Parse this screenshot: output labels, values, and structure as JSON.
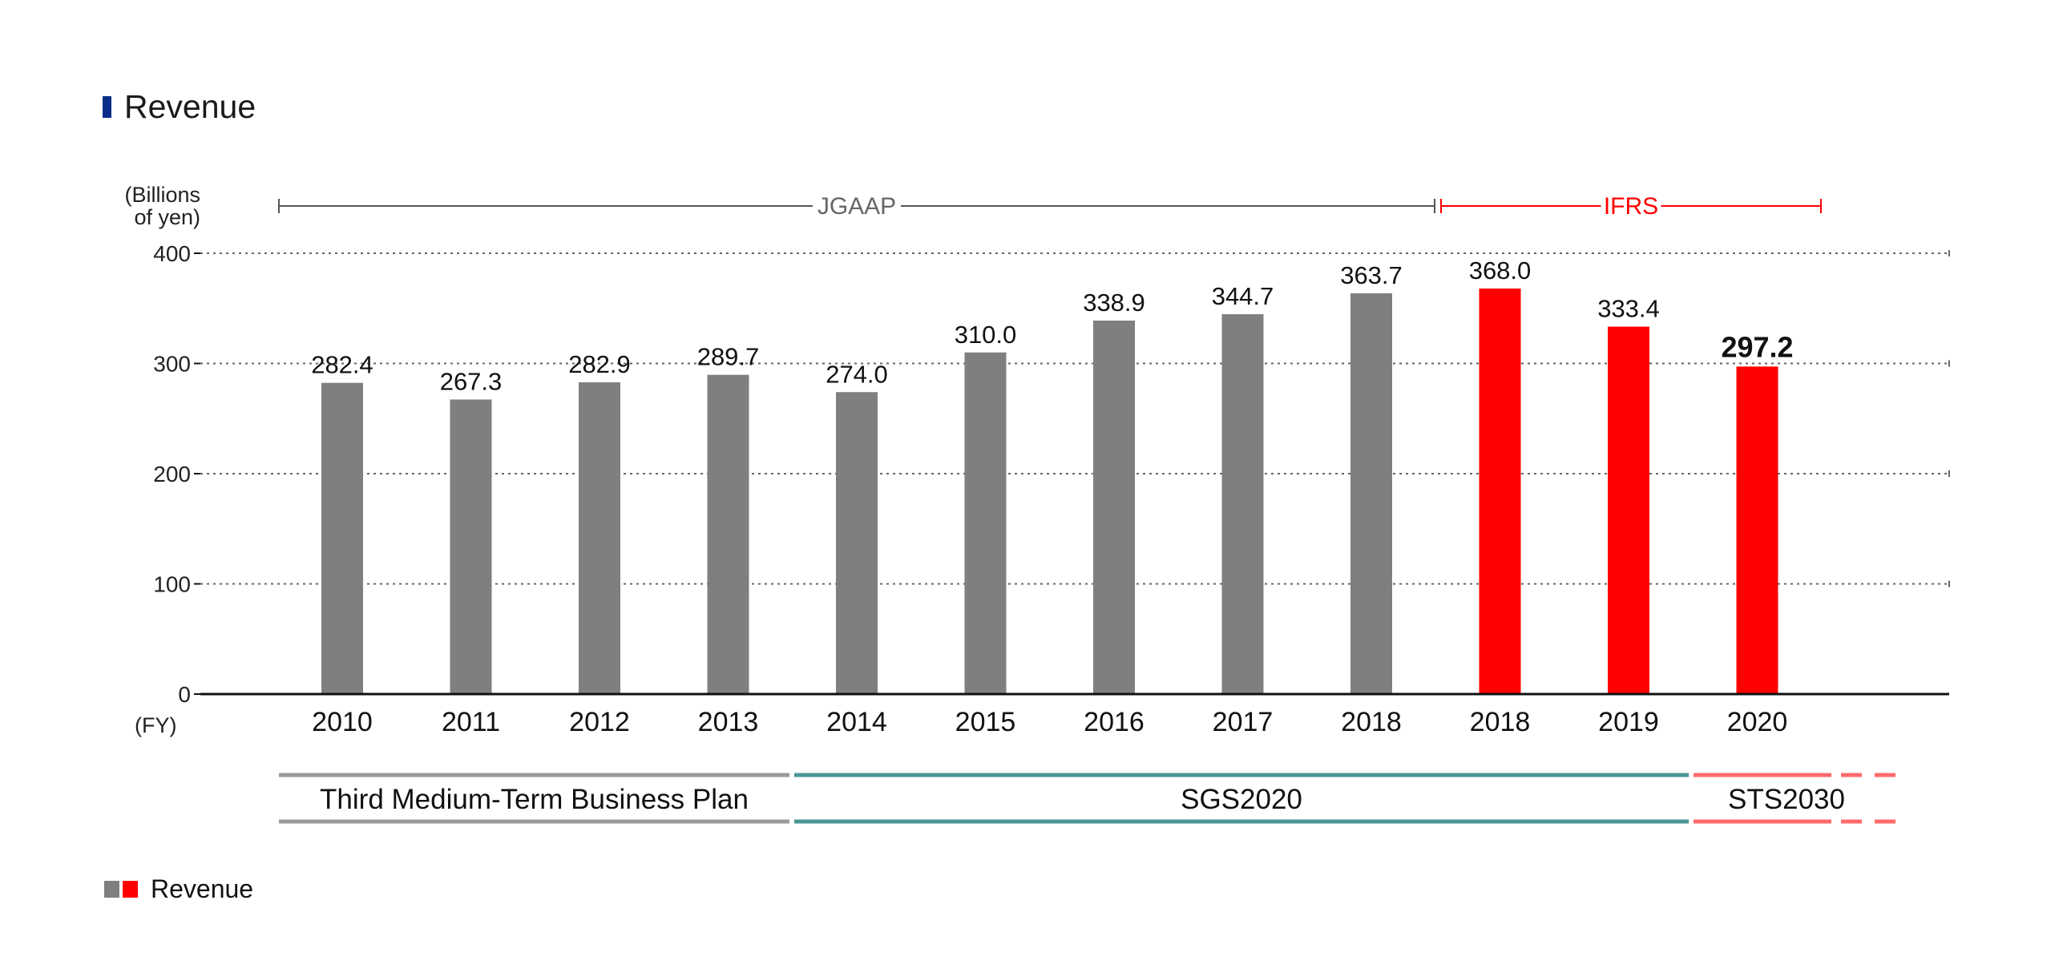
{
  "colors": {
    "jgaap_bar": "#7f7f7f",
    "ifrs_bar": "#ff0000",
    "title_marker": "#0a2e8a",
    "jgaap_line": "#555555",
    "ifrs_line": "#ff0000",
    "plan_third": "#9a9a9a",
    "plan_sgs": "#4a9696",
    "plan_sts": "#ff6b6b",
    "grid": "#666666",
    "axis": "#111111"
  },
  "chart_data": {
    "type": "bar",
    "title": "Revenue",
    "unit_label": [
      "(Billions",
      "of yen)"
    ],
    "xlabel": "(FY)",
    "ylim": [
      0,
      400
    ],
    "yticks": [
      0,
      100,
      200,
      300,
      400
    ],
    "grid": "horizontal dotted",
    "categories": [
      "2010",
      "2011",
      "2012",
      "2013",
      "2014",
      "2015",
      "2016",
      "2017",
      "2018",
      "2018",
      "2019",
      "2020"
    ],
    "values": [
      282.4,
      267.3,
      282.9,
      289.7,
      274.0,
      310.0,
      338.9,
      344.7,
      363.7,
      368.0,
      333.4,
      297.2
    ],
    "value_labels": [
      "282.4",
      "267.3",
      "282.9",
      "289.7",
      "274.0",
      "310.0",
      "338.9",
      "344.7",
      "363.7",
      "368.0",
      "333.4",
      "297.2"
    ],
    "standard": [
      "JGAAP",
      "JGAAP",
      "JGAAP",
      "JGAAP",
      "JGAAP",
      "JGAAP",
      "JGAAP",
      "JGAAP",
      "JGAAP",
      "IFRS",
      "IFRS",
      "IFRS"
    ],
    "accounting_spans": [
      {
        "label": "JGAAP",
        "from": 0,
        "to": 8
      },
      {
        "label": "IFRS",
        "from": 9,
        "to": 11
      }
    ],
    "plans": [
      {
        "label": "Third Medium-Term Business Plan",
        "from": 0,
        "to": 3,
        "continues": false
      },
      {
        "label": "SGS2020",
        "from": 4,
        "to": 10,
        "continues": false
      },
      {
        "label": "STS2030",
        "from": 11,
        "to": 11,
        "continues": true
      }
    ],
    "legend": {
      "label": "Revenue",
      "placement": "bottom-left"
    }
  }
}
